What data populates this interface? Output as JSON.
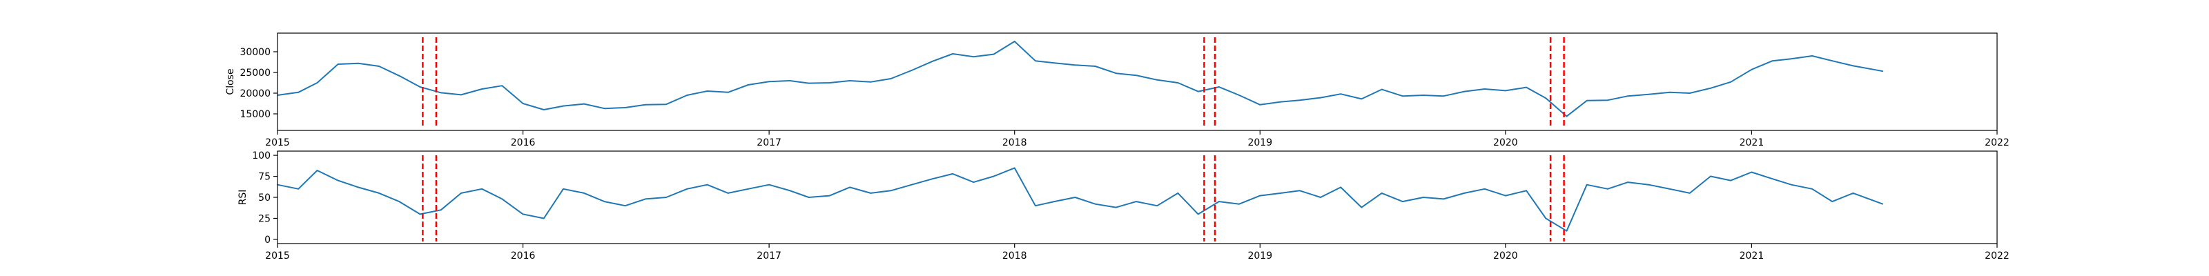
{
  "chart_data": [
    {
      "type": "line",
      "title": "",
      "xlabel": "",
      "ylabel": "Close",
      "xlim": [
        "2015-01-01",
        "2022-01-01"
      ],
      "ylim": [
        11000,
        34500
      ],
      "x_ticks": [
        "2015",
        "2016",
        "2017",
        "2018",
        "2019",
        "2020",
        "2021",
        "2022"
      ],
      "y_ticks": [
        15000,
        20000,
        25000,
        30000
      ],
      "y_tick_labels": [
        "15000",
        "20000",
        "25000",
        "30000"
      ],
      "line_color": "#1f77b4",
      "grid": false,
      "legend": "none",
      "x": [
        "2015-01-01",
        "2015-02-01",
        "2015-03-01",
        "2015-04-01",
        "2015-05-01",
        "2015-06-01",
        "2015-07-01",
        "2015-08-01",
        "2015-09-01",
        "2015-10-01",
        "2015-11-01",
        "2015-12-01",
        "2016-01-01",
        "2016-02-01",
        "2016-03-01",
        "2016-04-01",
        "2016-05-01",
        "2016-06-01",
        "2016-07-01",
        "2016-08-01",
        "2016-09-01",
        "2016-10-01",
        "2016-11-01",
        "2016-12-01",
        "2017-01-01",
        "2017-02-01",
        "2017-03-01",
        "2017-04-01",
        "2017-05-01",
        "2017-06-01",
        "2017-07-01",
        "2017-08-01",
        "2017-09-01",
        "2017-10-01",
        "2017-11-01",
        "2017-12-01",
        "2018-01-01",
        "2018-02-01",
        "2018-03-01",
        "2018-04-01",
        "2018-05-01",
        "2018-06-01",
        "2018-07-01",
        "2018-08-01",
        "2018-09-01",
        "2018-10-01",
        "2018-11-01",
        "2018-12-01",
        "2019-01-01",
        "2019-02-01",
        "2019-03-01",
        "2019-04-01",
        "2019-05-01",
        "2019-06-01",
        "2019-07-01",
        "2019-08-01",
        "2019-09-01",
        "2019-10-01",
        "2019-11-01",
        "2019-12-01",
        "2020-01-01",
        "2020-02-01",
        "2020-03-01",
        "2020-04-01",
        "2020-05-01",
        "2020-06-01",
        "2020-07-01",
        "2020-08-01",
        "2020-09-01",
        "2020-10-01",
        "2020-11-01",
        "2020-12-01",
        "2021-01-01",
        "2021-02-01",
        "2021-03-01",
        "2021-04-01",
        "2021-05-01",
        "2021-06-01",
        "2021-07-15"
      ],
      "values": [
        19500,
        20200,
        22500,
        27000,
        27200,
        26500,
        24200,
        21500,
        20100,
        19600,
        21000,
        21800,
        17500,
        16000,
        16900,
        17400,
        16300,
        16500,
        17200,
        17300,
        19500,
        20500,
        20200,
        22000,
        22800,
        23000,
        22400,
        22500,
        23000,
        22700,
        23500,
        25500,
        27700,
        29500,
        28800,
        29400,
        32500,
        27800,
        27300,
        26800,
        26500,
        24800,
        24300,
        23200,
        22500,
        20400,
        21500,
        19500,
        17200,
        17900,
        18300,
        18900,
        19800,
        18600,
        20900,
        19300,
        19500,
        19300,
        20400,
        21000,
        20600,
        21400,
        18800,
        14400,
        18200,
        18300,
        19300,
        19700,
        20200,
        20000,
        21200,
        22700,
        25700,
        27800,
        28300,
        29000,
        27800,
        26600,
        25300
      ],
      "markers": [
        "2015-08-05",
        "2015-08-25",
        "2018-10-10",
        "2018-10-26",
        "2020-03-08",
        "2020-03-28"
      ],
      "marker_color": "#ff0000"
    },
    {
      "type": "line",
      "title": "",
      "xlabel": "",
      "ylabel": "RSI",
      "xlim": [
        "2015-01-01",
        "2022-01-01"
      ],
      "ylim": [
        -5,
        105
      ],
      "x_ticks": [
        "2015",
        "2016",
        "2017",
        "2018",
        "2019",
        "2020",
        "2021",
        "2022"
      ],
      "y_ticks": [
        0,
        25,
        50,
        75,
        100
      ],
      "y_tick_labels": [
        "0",
        "25",
        "50",
        "75",
        "100"
      ],
      "line_color": "#1f77b4",
      "grid": false,
      "legend": "none",
      "x": [
        "2015-01-01",
        "2015-02-01",
        "2015-03-01",
        "2015-04-01",
        "2015-05-01",
        "2015-06-01",
        "2015-07-01",
        "2015-08-01",
        "2015-09-01",
        "2015-10-01",
        "2015-11-01",
        "2015-12-01",
        "2016-01-01",
        "2016-02-01",
        "2016-03-01",
        "2016-04-01",
        "2016-05-01",
        "2016-06-01",
        "2016-07-01",
        "2016-08-01",
        "2016-09-01",
        "2016-10-01",
        "2016-11-01",
        "2016-12-01",
        "2017-01-01",
        "2017-02-01",
        "2017-03-01",
        "2017-04-01",
        "2017-05-01",
        "2017-06-01",
        "2017-07-01",
        "2017-08-01",
        "2017-09-01",
        "2017-10-01",
        "2017-11-01",
        "2017-12-01",
        "2018-01-01",
        "2018-02-01",
        "2018-03-01",
        "2018-04-01",
        "2018-05-01",
        "2018-06-01",
        "2018-07-01",
        "2018-08-01",
        "2018-09-01",
        "2018-10-01",
        "2018-11-01",
        "2018-12-01",
        "2019-01-01",
        "2019-02-01",
        "2019-03-01",
        "2019-04-01",
        "2019-05-01",
        "2019-06-01",
        "2019-07-01",
        "2019-08-01",
        "2019-09-01",
        "2019-10-01",
        "2019-11-01",
        "2019-12-01",
        "2020-01-01",
        "2020-02-01",
        "2020-03-01",
        "2020-04-01",
        "2020-05-01",
        "2020-06-01",
        "2020-07-01",
        "2020-08-01",
        "2020-09-01",
        "2020-10-01",
        "2020-11-01",
        "2020-12-01",
        "2021-01-01",
        "2021-02-01",
        "2021-03-01",
        "2021-04-01",
        "2021-05-01",
        "2021-06-01",
        "2021-07-15"
      ],
      "values": [
        65,
        60,
        82,
        70,
        62,
        55,
        45,
        30,
        35,
        55,
        60,
        48,
        30,
        25,
        60,
        55,
        45,
        40,
        48,
        50,
        60,
        65,
        55,
        60,
        65,
        58,
        50,
        52,
        62,
        55,
        58,
        65,
        72,
        78,
        68,
        75,
        85,
        40,
        45,
        50,
        42,
        38,
        45,
        40,
        55,
        30,
        45,
        42,
        52,
        55,
        58,
        50,
        62,
        38,
        55,
        45,
        50,
        48,
        55,
        60,
        52,
        58,
        25,
        10,
        65,
        60,
        68,
        65,
        60,
        55,
        75,
        70,
        80,
        72,
        65,
        60,
        45,
        55,
        42
      ],
      "markers": [
        "2015-08-05",
        "2015-08-25",
        "2018-10-10",
        "2018-10-26",
        "2020-03-08",
        "2020-03-28"
      ],
      "marker_color": "#ff0000"
    }
  ]
}
